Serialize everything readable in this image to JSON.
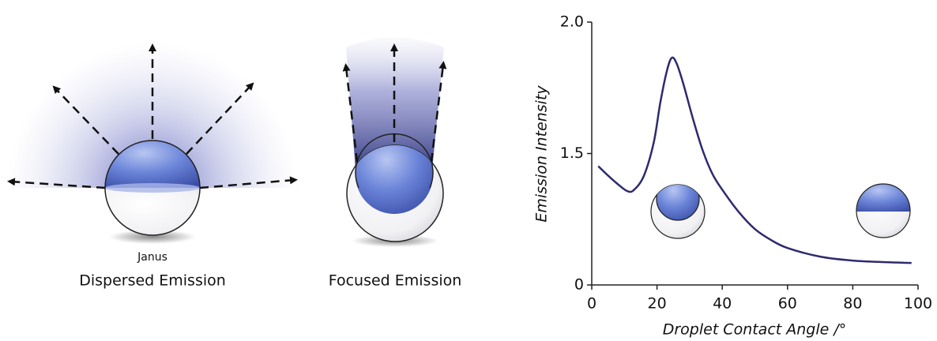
{
  "diagrams": [
    {
      "sublabel": "Janus",
      "label": "Dispersed Emission"
    },
    {
      "label": "Focused Emission"
    }
  ],
  "chart_data": {
    "type": "line",
    "xlabel": "Droplet Contact Angle /°",
    "ylabel": "Emission Intensity",
    "x": [
      2,
      5,
      8,
      11,
      13,
      16,
      19,
      21,
      23,
      24.5,
      26,
      28,
      31,
      34,
      37,
      40,
      45,
      50,
      55,
      60,
      70,
      80,
      90,
      98
    ],
    "values": [
      1.356,
      1.248,
      1.15,
      1.069,
      1.087,
      1.248,
      1.542,
      1.693,
      1.813,
      1.864,
      1.843,
      1.768,
      1.633,
      1.512,
      1.266,
      1.087,
      0.835,
      0.638,
      0.512,
      0.422,
      0.323,
      0.278,
      0.26,
      0.251
    ],
    "color": "#2e2a6e",
    "xlim": [
      0,
      100
    ],
    "xticks": [
      0,
      20,
      40,
      60,
      80,
      100
    ],
    "ylim": [
      0,
      2
    ],
    "yticks": [
      0,
      {
        "value": 1.5,
        "label": "1.5"
      },
      {
        "value": 2,
        "label": "2.0"
      }
    ]
  }
}
